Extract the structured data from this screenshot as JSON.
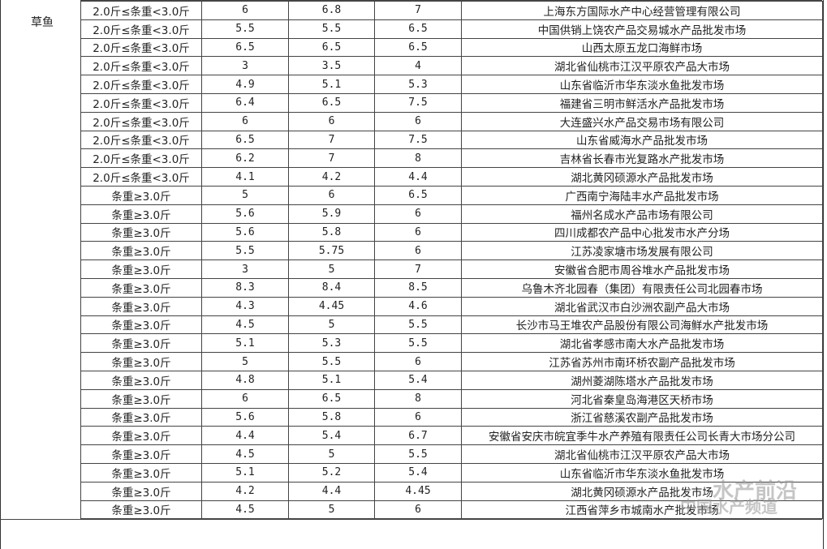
{
  "category": "草鱼",
  "rows": [
    {
      "spec": "2.0斤≤条重<3.0斤",
      "low": "6",
      "mid": "6.8",
      "high": "7",
      "market": "上海东方国际水产中心经营管理有限公司"
    },
    {
      "spec": "2.0斤≤条重<3.0斤",
      "low": "5.5",
      "mid": "5.5",
      "high": "6.5",
      "market": "中国供销上饶农产品交易城水产品批发市场"
    },
    {
      "spec": "2.0斤≤条重<3.0斤",
      "low": "6.5",
      "mid": "6.5",
      "high": "6.5",
      "market": "山西太原五龙口海鲜市场"
    },
    {
      "spec": "2.0斤≤条重<3.0斤",
      "low": "3",
      "mid": "3.5",
      "high": "4",
      "market": "湖北省仙桃市江汉平原农产品大市场"
    },
    {
      "spec": "2.0斤≤条重<3.0斤",
      "low": "4.9",
      "mid": "5.1",
      "high": "5.3",
      "market": "山东省临沂市华东淡水鱼批发市场"
    },
    {
      "spec": "2.0斤≤条重<3.0斤",
      "low": "6.4",
      "mid": "6.5",
      "high": "7.5",
      "market": "福建省三明市鲜活水产品批发市场"
    },
    {
      "spec": "2.0斤≤条重<3.0斤",
      "low": "6",
      "mid": "6",
      "high": "6",
      "market": "大连盛兴水产品交易市场有限公司"
    },
    {
      "spec": "2.0斤≤条重<3.0斤",
      "low": "6.5",
      "mid": "7",
      "high": "7.5",
      "market": "山东省威海水产品批发市场"
    },
    {
      "spec": "2.0斤≤条重<3.0斤",
      "low": "6.2",
      "mid": "7",
      "high": "8",
      "market": "吉林省长春市光复路水产批发市场"
    },
    {
      "spec": "2.0斤≤条重<3.0斤",
      "low": "4.1",
      "mid": "4.2",
      "high": "4.4",
      "market": "湖北黄冈硕源水产品批发市场"
    },
    {
      "spec": "条重≥3.0斤",
      "low": "5",
      "mid": "6",
      "high": "6.5",
      "market": "广西南宁海陆丰水产品批发市场"
    },
    {
      "spec": "条重≥3.0斤",
      "low": "5.6",
      "mid": "5.9",
      "high": "6",
      "market": "福州名成水产品市场有限公司"
    },
    {
      "spec": "条重≥3.0斤",
      "low": "5.6",
      "mid": "5.8",
      "high": "6",
      "market": "四川成都农产品中心批发市水产分场"
    },
    {
      "spec": "条重≥3.0斤",
      "low": "5.5",
      "mid": "5.75",
      "high": "6",
      "market": "江苏凌家塘市场发展有限公司"
    },
    {
      "spec": "条重≥3.0斤",
      "low": "3",
      "mid": "5",
      "high": "7",
      "market": "安徽省合肥市周谷堆水产品批发市场"
    },
    {
      "spec": "条重≥3.0斤",
      "low": "8.3",
      "mid": "8.4",
      "high": "8.5",
      "market": "乌鲁木齐北园春（集团）有限责任公司北园春市场"
    },
    {
      "spec": "条重≥3.0斤",
      "low": "4.3",
      "mid": "4.45",
      "high": "4.6",
      "market": "湖北省武汉市白沙洲农副产品大市场"
    },
    {
      "spec": "条重≥3.0斤",
      "low": "4.5",
      "mid": "5",
      "high": "5.5",
      "market": "长沙市马王堆农产品股份有限公司海鲜水产批发市场"
    },
    {
      "spec": "条重≥3.0斤",
      "low": "5.1",
      "mid": "5.3",
      "high": "5.5",
      "market": "湖北省孝感市南大水产品批发市场"
    },
    {
      "spec": "条重≥3.0斤",
      "low": "5",
      "mid": "5.5",
      "high": "6",
      "market": "江苏省苏州市南环桥农副产品批发市场"
    },
    {
      "spec": "条重≥3.0斤",
      "low": "4.8",
      "mid": "5.1",
      "high": "5.4",
      "market": "湖州菱湖陈塔水产品批发市场"
    },
    {
      "spec": "条重≥3.0斤",
      "low": "6",
      "mid": "6.5",
      "high": "8",
      "market": "河北省秦皇岛海港区天桥市场"
    },
    {
      "spec": "条重≥3.0斤",
      "low": "5.6",
      "mid": "5.8",
      "high": "6",
      "market": "浙江省慈溪农副产品批发市场"
    },
    {
      "spec": "条重≥3.0斤",
      "low": "4.4",
      "mid": "5.4",
      "high": "6.7",
      "market": "安徽省安庆市皖宜季牛水产养殖有限责任公司长青大市场分公司"
    },
    {
      "spec": "条重≥3.0斤",
      "low": "4.5",
      "mid": "5",
      "high": "5.5",
      "market": "湖北省仙桃市江汉平原农产品大市场"
    },
    {
      "spec": "条重≥3.0斤",
      "low": "5.1",
      "mid": "5.2",
      "high": "5.4",
      "market": "山东省临沂市华东淡水鱼批发市场"
    },
    {
      "spec": "条重≥3.0斤",
      "low": "4.2",
      "mid": "4.4",
      "high": "4.45",
      "market": "湖北黄冈硕源水产品批发市场"
    },
    {
      "spec": "条重≥3.0斤",
      "low": "4.5",
      "mid": "5",
      "high": "6",
      "market": "江西省萍乡市城南水产批发市场"
    }
  ],
  "watermark": {
    "line1": "水产前沿",
    "line2": "中国水产频道"
  }
}
